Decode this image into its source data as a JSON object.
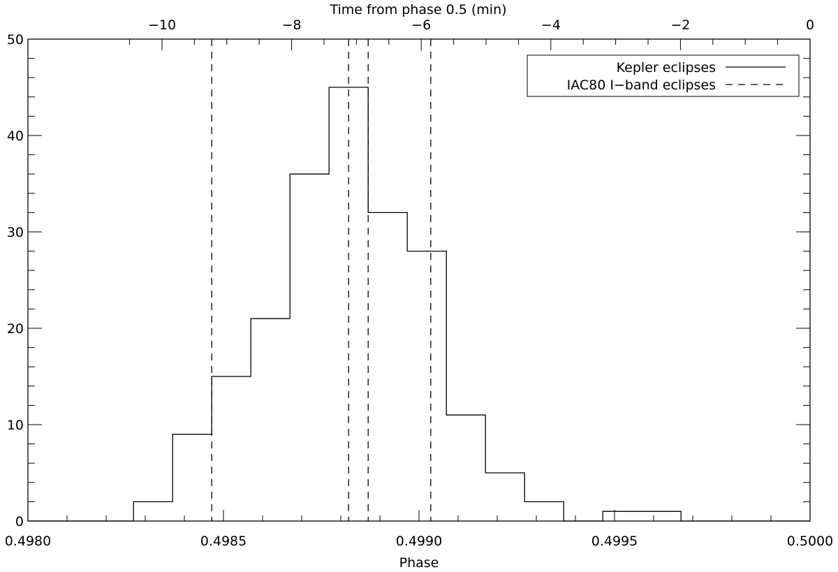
{
  "chart_data": {
    "type": "histogram",
    "x_axis": {
      "label": "Phase",
      "range": [
        0.498,
        0.5
      ],
      "ticks": [
        "0.4980",
        "0.4985",
        "0.4990",
        "0.4995",
        "0.5000"
      ],
      "tick_values": [
        0.498,
        0.4985,
        0.499,
        0.4995,
        0.5
      ]
    },
    "top_axis": {
      "label": "Time from phase 0.5 (min)",
      "ticks": [
        "−10",
        "−8",
        "−6",
        "−4",
        "−2",
        "0"
      ],
      "tick_values": [
        -10,
        -8,
        -6,
        -4,
        -2,
        0
      ]
    },
    "y_axis": {
      "label": "",
      "range": [
        0,
        50
      ],
      "ticks": [
        "0",
        "10",
        "20",
        "30",
        "40",
        "50"
      ],
      "tick_values": [
        0,
        10,
        20,
        30,
        40,
        50
      ]
    },
    "series": [
      {
        "name": "Kepler eclipses",
        "style": "solid",
        "bin_edges": [
          0.498,
          0.49827,
          0.49837,
          0.49847,
          0.49857,
          0.49867,
          0.49877,
          0.49887,
          0.49897,
          0.49907,
          0.49917,
          0.49927,
          0.49937,
          0.49947,
          0.49957,
          0.49967,
          0.49977,
          0.5
        ],
        "counts": [
          0,
          2,
          9,
          15,
          21,
          36,
          45,
          32,
          28,
          11,
          5,
          2,
          0,
          1,
          1,
          0,
          0
        ]
      },
      {
        "name": "IAC80 I−band eclipses",
        "style": "dashed",
        "x": [
          0.49847,
          0.49882,
          0.49887,
          0.49903
        ]
      }
    ],
    "legend_position": "top-right"
  }
}
